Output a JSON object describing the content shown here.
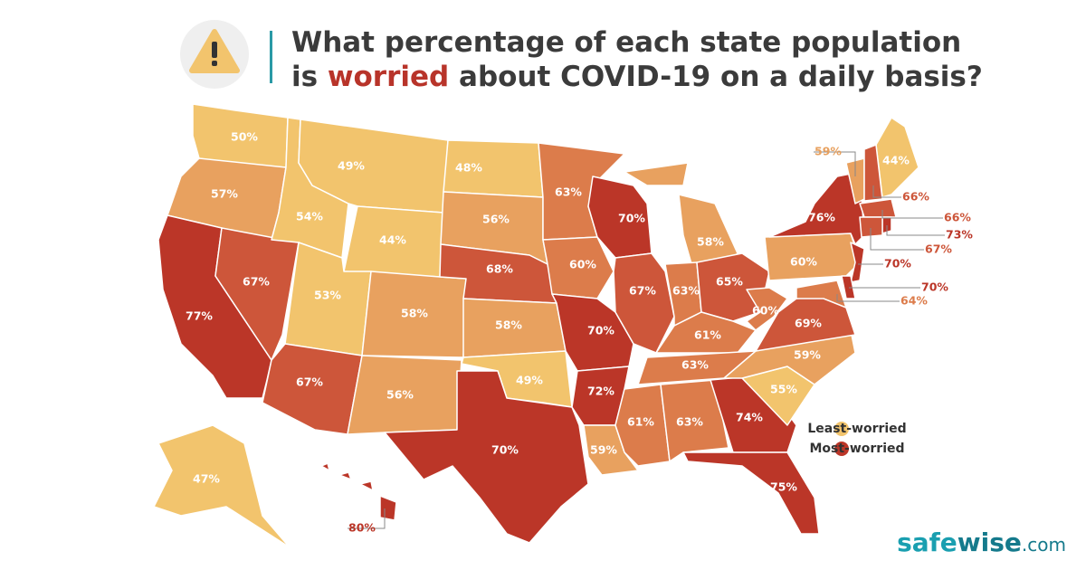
{
  "header": {
    "title_line1": "What percentage of each state population",
    "title_line2": [
      "is ",
      "worried",
      " about COVID-19 on a daily basis?"
    ]
  },
  "legend": [
    {
      "label": "Least-worried",
      "color": "#f2c46d"
    },
    {
      "label": "Most-worried",
      "color": "#bb3628"
    }
  ],
  "map": {
    "regions": [
      {
        "label": "50%",
        "color": "#f2c46d"
      },
      {
        "label": "57%",
        "color": "#e8a15f"
      },
      {
        "label": "77%",
        "color": "#bb3628"
      },
      {
        "label": "67%",
        "color": "#cd563a"
      },
      {
        "label": "54%",
        "color": "#f2c46d"
      },
      {
        "label": "49%",
        "color": "#f2c46d"
      },
      {
        "label": "44%",
        "color": "#f2c46d"
      },
      {
        "label": "53%",
        "color": "#f2c46d"
      },
      {
        "label": "67%",
        "color": "#cd563a"
      },
      {
        "label": "58%",
        "color": "#e8a15f"
      },
      {
        "label": "56%",
        "color": "#e8a15f"
      },
      {
        "label": "48%",
        "color": "#f2c46d"
      },
      {
        "label": "56%",
        "color": "#e8a15f"
      },
      {
        "label": "68%",
        "color": "#cd563a"
      },
      {
        "label": "58%",
        "color": "#e8a15f"
      },
      {
        "label": "49%",
        "color": "#f2c46d"
      },
      {
        "label": "70%",
        "color": "#bb3628"
      },
      {
        "label": "63%",
        "color": "#dc7c4b"
      },
      {
        "label": "60%",
        "color": "#dc7c4b"
      },
      {
        "label": "70%",
        "color": "#bb3628"
      },
      {
        "label": "72%",
        "color": "#bb3628"
      },
      {
        "label": "59%",
        "color": "#e8a15f"
      },
      {
        "label": "70%",
        "color": "#bb3628"
      },
      {
        "label": "67%",
        "color": "#cd563a"
      },
      {
        "label": "58%",
        "color": "#e8a15f"
      },
      {
        "label": "63%",
        "color": "#dc7c4b"
      },
      {
        "label": "65%",
        "color": "#cd563a"
      },
      {
        "label": "61%",
        "color": "#dc7c4b"
      },
      {
        "label": "63%",
        "color": "#dc7c4b"
      },
      {
        "label": "61%",
        "color": "#dc7c4b"
      },
      {
        "label": "63%",
        "color": "#dc7c4b"
      },
      {
        "label": "74%",
        "color": "#bb3628"
      },
      {
        "label": "75%",
        "color": "#bb3628"
      },
      {
        "label": "55%",
        "color": "#f2c46d"
      },
      {
        "label": "59%",
        "color": "#e8a15f"
      },
      {
        "label": "69%",
        "color": "#cd563a"
      },
      {
        "label": "60%",
        "color": "#dc7c4b"
      },
      {
        "label": "60%",
        "color": "#e8a15f"
      },
      {
        "label": "76%",
        "color": "#bb3628"
      },
      {
        "label": "44%",
        "color": "#f2c46d"
      },
      {
        "label": "59%",
        "color": "#e8a15f"
      },
      {
        "label": "66%",
        "color": "#cd563a"
      },
      {
        "label": "66%",
        "color": "#cd563a"
      },
      {
        "label": "73%",
        "color": "#bb3628"
      },
      {
        "label": "67%",
        "color": "#cd563a"
      },
      {
        "label": "70%",
        "color": "#bb3628"
      },
      {
        "label": "70%",
        "color": "#bb3628"
      },
      {
        "label": "64%",
        "color": "#dc7c4b"
      },
      {
        "label": "47%",
        "color": "#f2c46d"
      },
      {
        "label": "80%",
        "color": "#bb3628"
      }
    ]
  },
  "logo": [
    "safe",
    "wise",
    ".com"
  ]
}
